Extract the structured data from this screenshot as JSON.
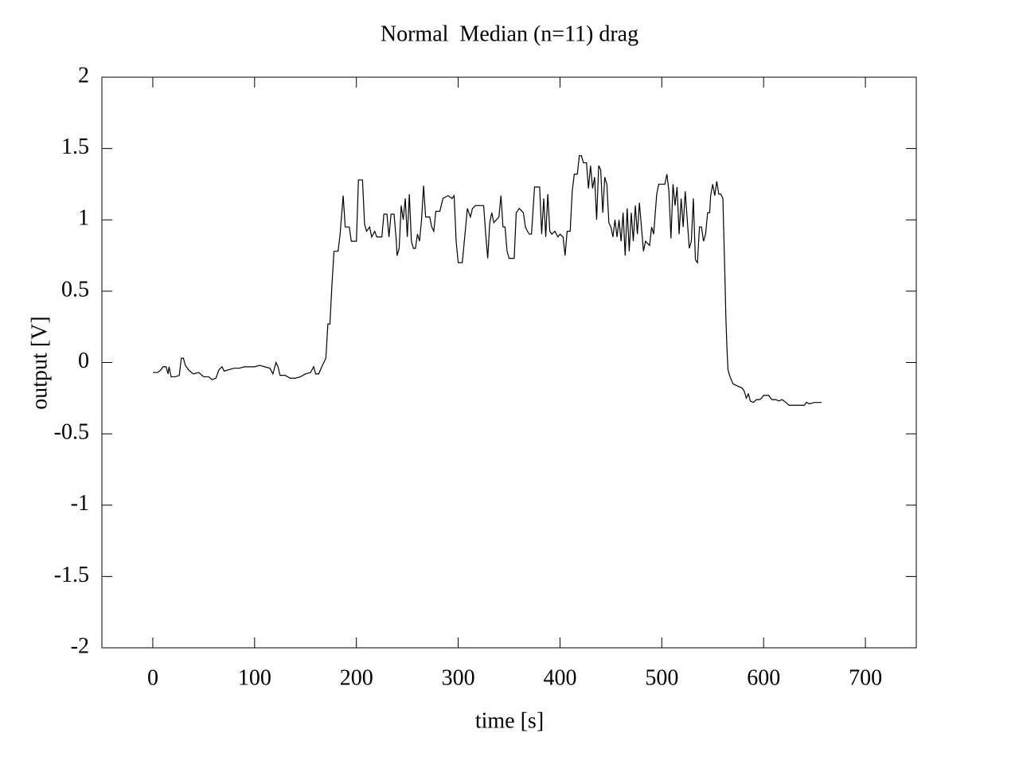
{
  "chart_data": {
    "type": "line",
    "title": "Normal  Median (n=11) drag",
    "x_label": "time [s]",
    "y_label": "output [V]",
    "color": "#000000",
    "xlim": [
      -50,
      750
    ],
    "ylim": [
      -2,
      2
    ],
    "xticks": [
      0,
      100,
      200,
      300,
      400,
      500,
      600,
      700
    ],
    "yticks": [
      -2,
      -1.5,
      -1,
      -0.5,
      0,
      0.5,
      1,
      1.5,
      2
    ],
    "x": [
      0,
      5,
      8,
      10,
      13,
      15,
      16,
      18,
      22,
      26,
      28,
      30,
      32,
      35,
      38,
      40,
      45,
      50,
      55,
      58,
      62,
      65,
      68,
      70,
      75,
      80,
      85,
      90,
      95,
      100,
      105,
      110,
      115,
      118,
      121,
      123,
      125,
      130,
      135,
      140,
      145,
      150,
      155,
      158,
      160,
      163,
      166,
      168,
      170,
      172,
      174,
      176,
      178,
      182,
      184,
      187,
      189,
      193,
      195,
      200,
      202,
      206,
      208,
      210,
      213,
      215,
      218,
      220,
      225,
      227,
      230,
      232,
      234,
      237,
      239,
      240,
      242,
      244,
      246,
      248,
      250,
      252,
      254,
      256,
      258,
      260,
      262,
      264,
      266,
      268,
      272,
      274,
      276,
      278,
      282,
      285,
      290,
      294,
      296,
      298,
      300,
      304,
      306,
      309,
      312,
      314,
      317,
      325,
      327,
      329,
      331,
      333,
      335,
      340,
      342,
      344,
      346,
      348,
      350,
      355,
      357,
      360,
      364,
      366,
      368,
      370,
      372,
      375,
      380,
      382,
      384,
      386,
      388,
      390,
      392,
      395,
      398,
      400,
      403,
      405,
      407,
      410,
      412,
      414,
      417,
      419,
      421,
      423,
      426,
      428,
      430,
      432,
      434,
      436,
      438,
      440,
      442,
      444,
      446,
      448,
      450,
      452,
      454,
      456,
      458,
      460,
      462,
      464,
      466,
      468,
      470,
      472,
      474,
      476,
      478,
      480,
      482,
      484,
      488,
      490,
      492,
      495,
      497,
      503,
      505,
      507,
      509,
      511,
      513,
      515,
      517,
      519,
      521,
      523,
      525,
      527,
      529,
      531,
      533,
      535,
      537,
      539,
      541,
      543,
      545,
      547,
      548,
      550,
      552,
      554,
      556,
      558,
      560,
      562,
      563,
      564,
      565,
      567,
      570,
      573,
      576,
      579,
      581,
      583,
      585,
      587,
      590,
      593,
      596,
      598,
      600,
      605,
      608,
      612,
      615,
      618,
      622,
      625,
      630,
      635,
      640,
      642,
      645,
      650,
      655,
      657
    ],
    "values": [
      -0.07,
      -0.07,
      -0.05,
      -0.03,
      -0.03,
      -0.08,
      -0.03,
      -0.1,
      -0.1,
      -0.09,
      0.03,
      0.03,
      -0.02,
      -0.05,
      -0.07,
      -0.08,
      -0.07,
      -0.1,
      -0.1,
      -0.12,
      -0.11,
      -0.05,
      -0.03,
      -0.06,
      -0.05,
      -0.04,
      -0.04,
      -0.03,
      -0.03,
      -0.03,
      -0.02,
      -0.03,
      -0.04,
      -0.08,
      0.0,
      -0.03,
      -0.09,
      -0.09,
      -0.11,
      -0.11,
      -0.1,
      -0.08,
      -0.07,
      -0.03,
      -0.08,
      -0.08,
      -0.03,
      0.0,
      0.03,
      0.27,
      0.27,
      0.55,
      0.78,
      0.78,
      0.9,
      1.17,
      0.95,
      0.95,
      0.85,
      0.85,
      1.28,
      1.28,
      0.97,
      0.92,
      0.95,
      0.88,
      0.92,
      0.88,
      0.88,
      1.04,
      1.04,
      0.88,
      1.04,
      1.04,
      0.87,
      0.75,
      0.8,
      1.1,
      1.0,
      1.15,
      0.88,
      1.18,
      0.85,
      0.8,
      0.8,
      0.9,
      0.85,
      1.0,
      1.24,
      1.02,
      1.02,
      0.95,
      0.92,
      1.06,
      1.06,
      1.15,
      1.17,
      1.15,
      1.17,
      0.85,
      0.7,
      0.7,
      0.85,
      1.08,
      1.02,
      1.08,
      1.1,
      1.1,
      0.9,
      0.73,
      0.98,
      1.05,
      0.98,
      1.02,
      1.17,
      0.95,
      0.95,
      0.78,
      0.73,
      0.73,
      1.05,
      1.08,
      1.05,
      0.95,
      0.92,
      0.9,
      0.9,
      1.23,
      1.23,
      0.9,
      1.15,
      0.88,
      1.18,
      0.92,
      0.9,
      0.92,
      0.88,
      0.9,
      0.88,
      0.75,
      0.92,
      0.92,
      1.2,
      1.32,
      1.32,
      1.45,
      1.45,
      1.4,
      1.4,
      1.22,
      1.38,
      1.22,
      1.3,
      1.0,
      1.38,
      1.35,
      1.05,
      1.3,
      1.25,
      0.98,
      0.95,
      0.88,
      1.0,
      0.88,
      1.0,
      0.85,
      1.05,
      0.75,
      1.08,
      0.78,
      1.05,
      0.85,
      1.1,
      0.9,
      1.12,
      0.95,
      0.78,
      0.85,
      0.82,
      0.95,
      0.9,
      1.18,
      1.25,
      1.25,
      1.32,
      1.2,
      0.87,
      1.25,
      1.1,
      1.23,
      0.9,
      1.15,
      0.95,
      1.2,
      1.0,
      0.8,
      0.85,
      1.15,
      0.72,
      0.7,
      0.95,
      0.95,
      0.85,
      0.9,
      1.05,
      1.05,
      1.17,
      1.25,
      1.17,
      1.27,
      1.18,
      1.18,
      1.15,
      0.6,
      0.3,
      0.1,
      -0.05,
      -0.1,
      -0.15,
      -0.16,
      -0.17,
      -0.18,
      -0.2,
      -0.25,
      -0.22,
      -0.27,
      -0.28,
      -0.26,
      -0.26,
      -0.25,
      -0.23,
      -0.23,
      -0.26,
      -0.26,
      -0.27,
      -0.26,
      -0.28,
      -0.3,
      -0.3,
      -0.3,
      -0.3,
      -0.28,
      -0.29,
      -0.28,
      -0.28,
      -0.28
    ]
  }
}
